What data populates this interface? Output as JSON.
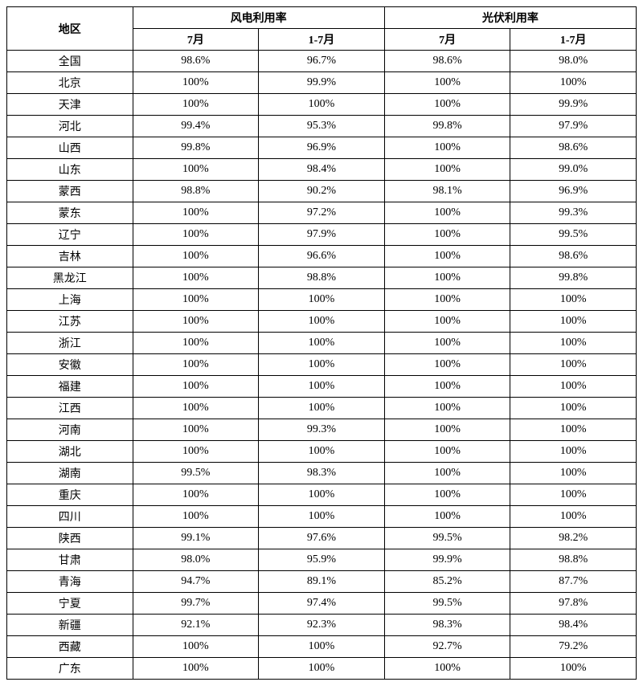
{
  "table": {
    "type": "table",
    "headers": {
      "region": "地区",
      "wind": "风电利用率",
      "solar": "光伏利用率",
      "sub_jul": "7月",
      "sub_jan_jul": "1-7月"
    },
    "columns": [
      "地区",
      "风电利用率-7月",
      "风电利用率-1-7月",
      "光伏利用率-7月",
      "光伏利用率-1-7月"
    ],
    "column_widths": [
      "20%",
      "20%",
      "20%",
      "20%",
      "20%"
    ],
    "border_color": "#000000",
    "font_size": 14,
    "header_font_weight": "bold",
    "text_color": "#000000",
    "background_color": "#ffffff",
    "rows": [
      {
        "region": "全国",
        "wind_jul": "98.6%",
        "wind_jj": "96.7%",
        "solar_jul": "98.6%",
        "solar_jj": "98.0%"
      },
      {
        "region": "北京",
        "wind_jul": "100%",
        "wind_jj": "99.9%",
        "solar_jul": "100%",
        "solar_jj": "100%"
      },
      {
        "region": "天津",
        "wind_jul": "100%",
        "wind_jj": "100%",
        "solar_jul": "100%",
        "solar_jj": "99.9%"
      },
      {
        "region": "河北",
        "wind_jul": "99.4%",
        "wind_jj": "95.3%",
        "solar_jul": "99.8%",
        "solar_jj": "97.9%"
      },
      {
        "region": "山西",
        "wind_jul": "99.8%",
        "wind_jj": "96.9%",
        "solar_jul": "100%",
        "solar_jj": "98.6%"
      },
      {
        "region": "山东",
        "wind_jul": "100%",
        "wind_jj": "98.4%",
        "solar_jul": "100%",
        "solar_jj": "99.0%"
      },
      {
        "region": "蒙西",
        "wind_jul": "98.8%",
        "wind_jj": "90.2%",
        "solar_jul": "98.1%",
        "solar_jj": "96.9%"
      },
      {
        "region": "蒙东",
        "wind_jul": "100%",
        "wind_jj": "97.2%",
        "solar_jul": "100%",
        "solar_jj": "99.3%"
      },
      {
        "region": "辽宁",
        "wind_jul": "100%",
        "wind_jj": "97.9%",
        "solar_jul": "100%",
        "solar_jj": "99.5%"
      },
      {
        "region": "吉林",
        "wind_jul": "100%",
        "wind_jj": "96.6%",
        "solar_jul": "100%",
        "solar_jj": "98.6%"
      },
      {
        "region": "黑龙江",
        "wind_jul": "100%",
        "wind_jj": "98.8%",
        "solar_jul": "100%",
        "solar_jj": "99.8%"
      },
      {
        "region": "上海",
        "wind_jul": "100%",
        "wind_jj": "100%",
        "solar_jul": "100%",
        "solar_jj": "100%"
      },
      {
        "region": "江苏",
        "wind_jul": "100%",
        "wind_jj": "100%",
        "solar_jul": "100%",
        "solar_jj": "100%"
      },
      {
        "region": "浙江",
        "wind_jul": "100%",
        "wind_jj": "100%",
        "solar_jul": "100%",
        "solar_jj": "100%"
      },
      {
        "region": "安徽",
        "wind_jul": "100%",
        "wind_jj": "100%",
        "solar_jul": "100%",
        "solar_jj": "100%"
      },
      {
        "region": "福建",
        "wind_jul": "100%",
        "wind_jj": "100%",
        "solar_jul": "100%",
        "solar_jj": "100%"
      },
      {
        "region": "江西",
        "wind_jul": "100%",
        "wind_jj": "100%",
        "solar_jul": "100%",
        "solar_jj": "100%"
      },
      {
        "region": "河南",
        "wind_jul": "100%",
        "wind_jj": "99.3%",
        "solar_jul": "100%",
        "solar_jj": "100%"
      },
      {
        "region": "湖北",
        "wind_jul": "100%",
        "wind_jj": "100%",
        "solar_jul": "100%",
        "solar_jj": "100%"
      },
      {
        "region": "湖南",
        "wind_jul": "99.5%",
        "wind_jj": "98.3%",
        "solar_jul": "100%",
        "solar_jj": "100%"
      },
      {
        "region": "重庆",
        "wind_jul": "100%",
        "wind_jj": "100%",
        "solar_jul": "100%",
        "solar_jj": "100%"
      },
      {
        "region": "四川",
        "wind_jul": "100%",
        "wind_jj": "100%",
        "solar_jul": "100%",
        "solar_jj": "100%"
      },
      {
        "region": "陕西",
        "wind_jul": "99.1%",
        "wind_jj": "97.6%",
        "solar_jul": "99.5%",
        "solar_jj": "98.2%"
      },
      {
        "region": "甘肃",
        "wind_jul": "98.0%",
        "wind_jj": "95.9%",
        "solar_jul": "99.9%",
        "solar_jj": "98.8%"
      },
      {
        "region": "青海",
        "wind_jul": "94.7%",
        "wind_jj": "89.1%",
        "solar_jul": "85.2%",
        "solar_jj": "87.7%"
      },
      {
        "region": "宁夏",
        "wind_jul": "99.7%",
        "wind_jj": "97.4%",
        "solar_jul": "99.5%",
        "solar_jj": "97.8%"
      },
      {
        "region": "新疆",
        "wind_jul": "92.1%",
        "wind_jj": "92.3%",
        "solar_jul": "98.3%",
        "solar_jj": "98.4%"
      },
      {
        "region": "西藏",
        "wind_jul": "100%",
        "wind_jj": "100%",
        "solar_jul": "92.7%",
        "solar_jj": "79.2%"
      },
      {
        "region": "广东",
        "wind_jul": "100%",
        "wind_jj": "100%",
        "solar_jul": "100%",
        "solar_jj": "100%"
      }
    ]
  }
}
